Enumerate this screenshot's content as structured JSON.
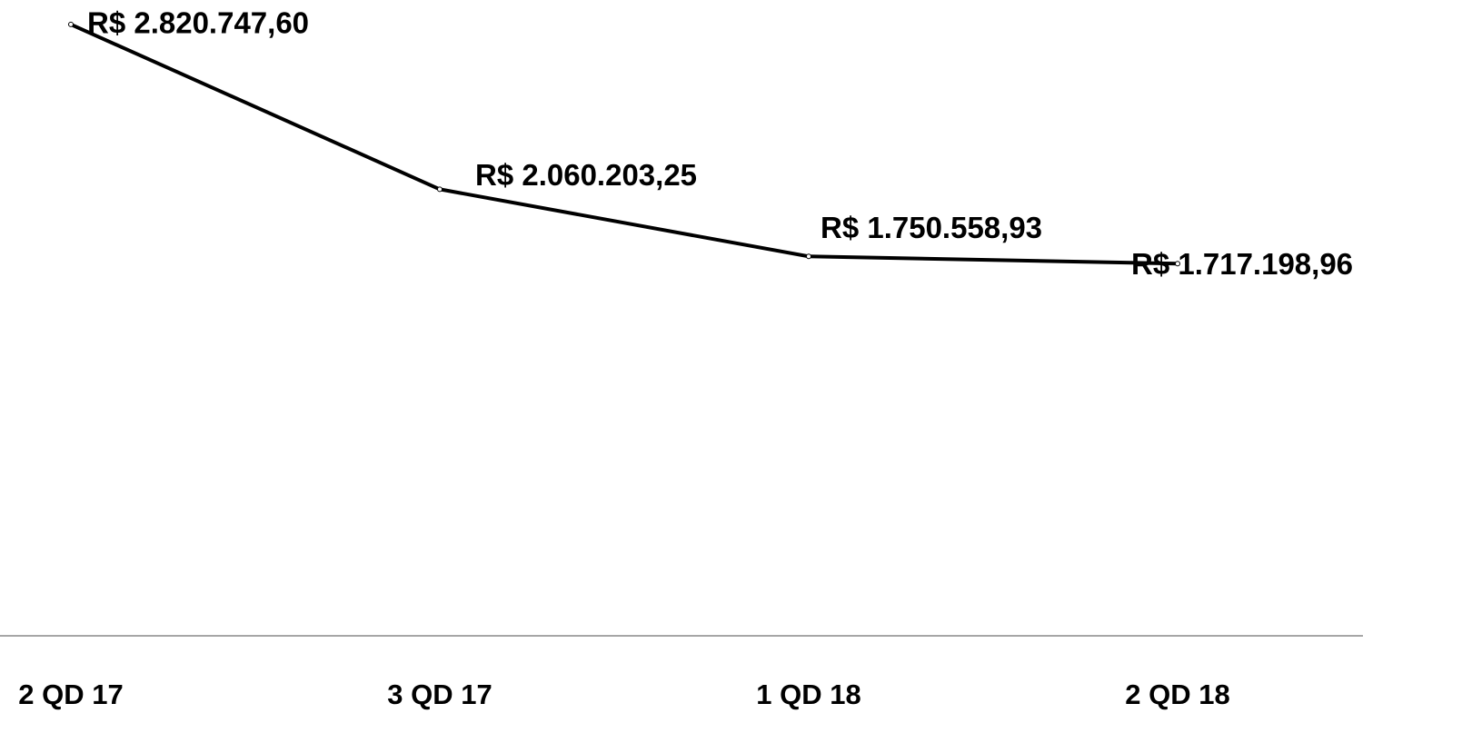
{
  "chart_data": {
    "type": "line",
    "categories": [
      "2 QD 17",
      "3 QD 17",
      "1 QD 18",
      "2 QD 18"
    ],
    "values": [
      2820747.6,
      2060203.25,
      1750558.93,
      1717198.96
    ],
    "value_labels": [
      "R$ 2.820.747,60",
      "R$ 2.060.203,25",
      "R$ 1.750.558,93",
      "R$ 1.717.198,96"
    ],
    "color": "#000000",
    "ylim": [
      0,
      2900000
    ]
  }
}
